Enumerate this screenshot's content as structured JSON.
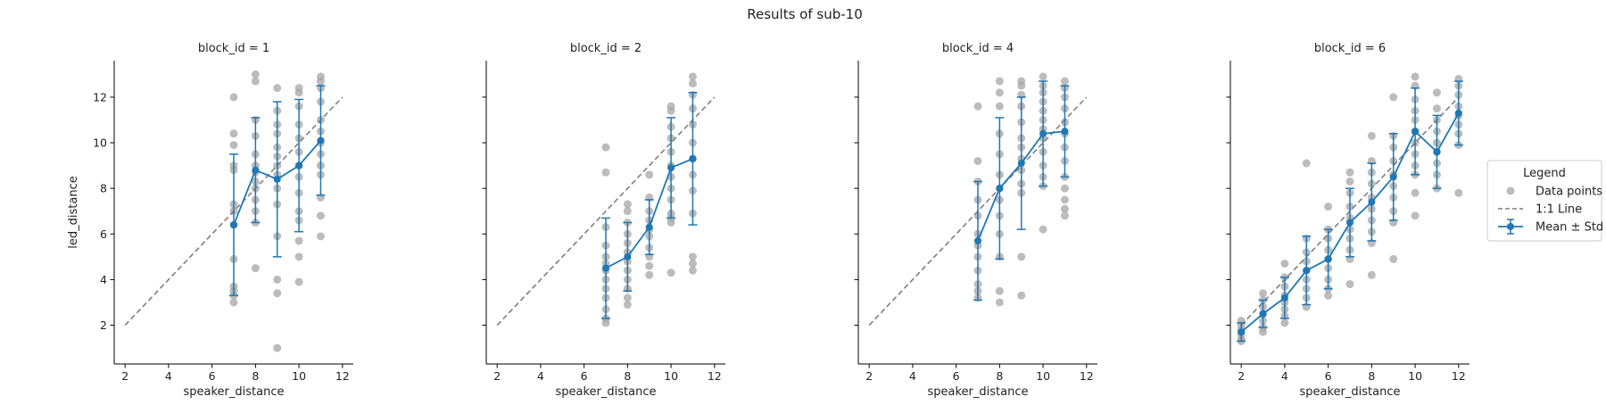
{
  "figure": {
    "title": "Results of sub-10"
  },
  "legend": {
    "title": "Legend",
    "entries": [
      {
        "label": "Data points",
        "kind": "dot"
      },
      {
        "label": "1:1 Line",
        "kind": "dashed"
      },
      {
        "label": "Mean ± Std",
        "kind": "errorbar"
      }
    ]
  },
  "colors": {
    "mean": "#1f77b4",
    "points": "#a6a6a6",
    "identity": "#7f7f7f",
    "axis": "#000000"
  },
  "chart_data": [
    {
      "type": "line",
      "title": "block_id = 1",
      "xlabel": "speaker_distance",
      "ylabel": "led_distance",
      "xlim": [
        1.5,
        12.5
      ],
      "ylim": [
        0.3,
        13.6
      ],
      "xticks": [
        2,
        4,
        6,
        8,
        10,
        12
      ],
      "yticks": [
        2,
        4,
        6,
        8,
        10,
        12
      ],
      "identity_line": [
        2,
        12
      ],
      "mean": {
        "x": [
          7,
          8,
          9,
          10,
          11
        ],
        "y": [
          6.4,
          8.8,
          8.4,
          9.0,
          10.1
        ],
        "std": [
          3.1,
          2.3,
          3.4,
          2.9,
          2.4
        ]
      },
      "points": [
        [
          7,
          12.0
        ],
        [
          7,
          10.4
        ],
        [
          7,
          9.9
        ],
        [
          7,
          9.0
        ],
        [
          7,
          8.8
        ],
        [
          7,
          7.3
        ],
        [
          7,
          7.0
        ],
        [
          7,
          6.4
        ],
        [
          7,
          4.9
        ],
        [
          7,
          3.7
        ],
        [
          7,
          3.5
        ],
        [
          7,
          3.3
        ],
        [
          7,
          3.0
        ],
        [
          8,
          13.0
        ],
        [
          8,
          12.7
        ],
        [
          8,
          11.0
        ],
        [
          8,
          10.3
        ],
        [
          8,
          9.5
        ],
        [
          8,
          9.0
        ],
        [
          8,
          8.7
        ],
        [
          8,
          8.3
        ],
        [
          8,
          8.0
        ],
        [
          8,
          7.5
        ],
        [
          8,
          7.0
        ],
        [
          8,
          6.5
        ],
        [
          8,
          4.5
        ],
        [
          9,
          12.4
        ],
        [
          9,
          11.4
        ],
        [
          9,
          10.8
        ],
        [
          9,
          10.4
        ],
        [
          9,
          9.8
        ],
        [
          9,
          9.4
        ],
        [
          9,
          9.0
        ],
        [
          9,
          8.6
        ],
        [
          9,
          8.0
        ],
        [
          9,
          7.3
        ],
        [
          9,
          5.9
        ],
        [
          9,
          4.0
        ],
        [
          9,
          3.4
        ],
        [
          9,
          1.0
        ],
        [
          10,
          12.4
        ],
        [
          10,
          12.2
        ],
        [
          10,
          11.6
        ],
        [
          10,
          10.8
        ],
        [
          10,
          10.2
        ],
        [
          10,
          9.6
        ],
        [
          10,
          9.0
        ],
        [
          10,
          8.5
        ],
        [
          10,
          7.8
        ],
        [
          10,
          7.0
        ],
        [
          10,
          6.6
        ],
        [
          10,
          5.7
        ],
        [
          10,
          5.0
        ],
        [
          10,
          3.9
        ],
        [
          11,
          12.9
        ],
        [
          11,
          12.7
        ],
        [
          11,
          12.4
        ],
        [
          11,
          11.8
        ],
        [
          11,
          11.0
        ],
        [
          11,
          10.5
        ],
        [
          11,
          10.0
        ],
        [
          11,
          9.5
        ],
        [
          11,
          9.0
        ],
        [
          11,
          8.6
        ],
        [
          11,
          7.6
        ],
        [
          11,
          6.8
        ],
        [
          11,
          5.9
        ]
      ]
    },
    {
      "type": "line",
      "title": "block_id = 2",
      "xlabel": "speaker_distance",
      "ylabel": "",
      "xlim": [
        1.5,
        12.5
      ],
      "ylim": [
        0.3,
        13.6
      ],
      "xticks": [
        2,
        4,
        6,
        8,
        10,
        12
      ],
      "yticks": [
        2,
        4,
        6,
        8,
        10,
        12
      ],
      "identity_line": [
        2,
        12
      ],
      "mean": {
        "x": [
          7,
          8,
          9,
          10,
          11
        ],
        "y": [
          4.5,
          5.0,
          6.3,
          8.9,
          9.3
        ],
        "std": [
          2.2,
          1.5,
          1.2,
          2.2,
          2.9
        ]
      },
      "points": [
        [
          7,
          9.8
        ],
        [
          7,
          8.7
        ],
        [
          7,
          6.3
        ],
        [
          7,
          5.5
        ],
        [
          7,
          5.0
        ],
        [
          7,
          4.7
        ],
        [
          7,
          4.4
        ],
        [
          7,
          4.0
        ],
        [
          7,
          3.6
        ],
        [
          7,
          3.2
        ],
        [
          7,
          2.7
        ],
        [
          7,
          2.3
        ],
        [
          7,
          2.1
        ],
        [
          8,
          7.3
        ],
        [
          8,
          7.0
        ],
        [
          8,
          6.5
        ],
        [
          8,
          6.0
        ],
        [
          8,
          5.6
        ],
        [
          8,
          5.2
        ],
        [
          8,
          4.8
        ],
        [
          8,
          4.4
        ],
        [
          8,
          4.0
        ],
        [
          8,
          3.6
        ],
        [
          8,
          3.2
        ],
        [
          8,
          2.9
        ],
        [
          9,
          8.6
        ],
        [
          9,
          7.6
        ],
        [
          9,
          7.0
        ],
        [
          9,
          6.6
        ],
        [
          9,
          6.2
        ],
        [
          9,
          5.9
        ],
        [
          9,
          5.4
        ],
        [
          9,
          5.0
        ],
        [
          9,
          4.6
        ],
        [
          9,
          4.2
        ],
        [
          10,
          11.6
        ],
        [
          10,
          11.4
        ],
        [
          10,
          10.7
        ],
        [
          10,
          10.2
        ],
        [
          10,
          9.6
        ],
        [
          10,
          9.0
        ],
        [
          10,
          8.5
        ],
        [
          10,
          8.0
        ],
        [
          10,
          7.5
        ],
        [
          10,
          6.9
        ],
        [
          10,
          6.7
        ],
        [
          10,
          6.5
        ],
        [
          10,
          4.3
        ],
        [
          11,
          12.9
        ],
        [
          11,
          12.6
        ],
        [
          11,
          12.1
        ],
        [
          11,
          11.5
        ],
        [
          11,
          10.8
        ],
        [
          11,
          10.0
        ],
        [
          11,
          9.3
        ],
        [
          11,
          8.6
        ],
        [
          11,
          7.9
        ],
        [
          11,
          6.9
        ],
        [
          11,
          5.0
        ],
        [
          11,
          4.7
        ],
        [
          11,
          4.4
        ]
      ]
    },
    {
      "type": "line",
      "title": "block_id = 4",
      "xlabel": "speaker_distance",
      "ylabel": "",
      "xlim": [
        1.5,
        12.5
      ],
      "ylim": [
        0.3,
        13.6
      ],
      "xticks": [
        2,
        4,
        6,
        8,
        10,
        12
      ],
      "yticks": [
        2,
        4,
        6,
        8,
        10,
        12
      ],
      "identity_line": [
        2,
        12
      ],
      "mean": {
        "x": [
          7,
          8,
          9,
          10,
          11
        ],
        "y": [
          5.7,
          8.0,
          9.1,
          10.4,
          10.5
        ],
        "std": [
          2.6,
          3.1,
          2.9,
          2.3,
          2.0
        ]
      },
      "points": [
        [
          7,
          11.6
        ],
        [
          7,
          9.2
        ],
        [
          7,
          8.3
        ],
        [
          7,
          7.5
        ],
        [
          7,
          6.8
        ],
        [
          7,
          6.0
        ],
        [
          7,
          5.5
        ],
        [
          7,
          5.0
        ],
        [
          7,
          4.4
        ],
        [
          7,
          3.8
        ],
        [
          7,
          3.5
        ],
        [
          7,
          3.2
        ],
        [
          8,
          12.7
        ],
        [
          8,
          12.2
        ],
        [
          8,
          11.6
        ],
        [
          8,
          10.4
        ],
        [
          8,
          9.5
        ],
        [
          8,
          8.6
        ],
        [
          8,
          8.0
        ],
        [
          8,
          7.5
        ],
        [
          8,
          6.8
        ],
        [
          8,
          6.0
        ],
        [
          8,
          5.0
        ],
        [
          8,
          3.5
        ],
        [
          8,
          3.0
        ],
        [
          9,
          12.7
        ],
        [
          9,
          12.5
        ],
        [
          9,
          12.1
        ],
        [
          9,
          11.6
        ],
        [
          9,
          10.9
        ],
        [
          9,
          10.2
        ],
        [
          9,
          9.8
        ],
        [
          9,
          9.3
        ],
        [
          9,
          8.8
        ],
        [
          9,
          8.2
        ],
        [
          9,
          7.8
        ],
        [
          9,
          5.0
        ],
        [
          9,
          3.3
        ],
        [
          10,
          12.9
        ],
        [
          10,
          12.5
        ],
        [
          10,
          12.2
        ],
        [
          10,
          11.8
        ],
        [
          10,
          11.4
        ],
        [
          10,
          11.0
        ],
        [
          10,
          10.6
        ],
        [
          10,
          10.2
        ],
        [
          10,
          9.6
        ],
        [
          10,
          9.0
        ],
        [
          10,
          8.5
        ],
        [
          10,
          8.1
        ],
        [
          10,
          6.2
        ],
        [
          11,
          12.7
        ],
        [
          11,
          12.4
        ],
        [
          11,
          12.0
        ],
        [
          11,
          11.5
        ],
        [
          11,
          10.9
        ],
        [
          11,
          10.4
        ],
        [
          11,
          9.8
        ],
        [
          11,
          9.2
        ],
        [
          11,
          8.5
        ],
        [
          11,
          8.0
        ],
        [
          11,
          7.5
        ],
        [
          11,
          7.1
        ],
        [
          11,
          6.8
        ]
      ]
    },
    {
      "type": "line",
      "title": "block_id = 6",
      "xlabel": "speaker_distance",
      "ylabel": "",
      "xlim": [
        1.5,
        12.5
      ],
      "ylim": [
        0.3,
        13.6
      ],
      "xticks": [
        2,
        4,
        6,
        8,
        10,
        12
      ],
      "yticks": [
        2,
        4,
        6,
        8,
        10,
        12
      ],
      "identity_line": [
        2,
        12
      ],
      "mean": {
        "x": [
          2,
          3,
          4,
          5,
          6,
          7,
          8,
          9,
          10,
          11,
          12
        ],
        "y": [
          1.7,
          2.5,
          3.2,
          4.4,
          4.9,
          6.5,
          7.4,
          8.5,
          10.5,
          9.6,
          11.3
        ],
        "std": [
          0.4,
          0.6,
          0.9,
          1.5,
          1.3,
          1.5,
          1.7,
          1.9,
          1.9,
          1.6,
          1.4
        ]
      },
      "points": [
        [
          2,
          2.2
        ],
        [
          2,
          2.0
        ],
        [
          2,
          1.8
        ],
        [
          2,
          1.6
        ],
        [
          2,
          1.4
        ],
        [
          2,
          1.3
        ],
        [
          3,
          3.4
        ],
        [
          3,
          3.1
        ],
        [
          3,
          2.8
        ],
        [
          3,
          2.5
        ],
        [
          3,
          2.2
        ],
        [
          3,
          1.9
        ],
        [
          3,
          1.7
        ],
        [
          4,
          4.7
        ],
        [
          4,
          4.1
        ],
        [
          4,
          3.7
        ],
        [
          4,
          3.3
        ],
        [
          4,
          3.0
        ],
        [
          4,
          2.7
        ],
        [
          4,
          2.4
        ],
        [
          4,
          2.1
        ],
        [
          5,
          9.1
        ],
        [
          5,
          5.8
        ],
        [
          5,
          5.2
        ],
        [
          5,
          4.8
        ],
        [
          5,
          4.4
        ],
        [
          5,
          4.0
        ],
        [
          5,
          3.6
        ],
        [
          5,
          3.2
        ],
        [
          5,
          2.8
        ],
        [
          6,
          7.2
        ],
        [
          6,
          6.2
        ],
        [
          6,
          5.8
        ],
        [
          6,
          5.3
        ],
        [
          6,
          4.9
        ],
        [
          6,
          4.5
        ],
        [
          6,
          4.0
        ],
        [
          6,
          3.6
        ],
        [
          6,
          3.3
        ],
        [
          7,
          8.7
        ],
        [
          7,
          8.3
        ],
        [
          7,
          7.8
        ],
        [
          7,
          7.2
        ],
        [
          7,
          6.7
        ],
        [
          7,
          6.2
        ],
        [
          7,
          5.8
        ],
        [
          7,
          5.3
        ],
        [
          7,
          4.9
        ],
        [
          7,
          3.8
        ],
        [
          8,
          10.3
        ],
        [
          8,
          9.2
        ],
        [
          8,
          8.7
        ],
        [
          8,
          8.2
        ],
        [
          8,
          7.6
        ],
        [
          8,
          7.1
        ],
        [
          8,
          6.6
        ],
        [
          8,
          6.1
        ],
        [
          8,
          5.6
        ],
        [
          8,
          4.2
        ],
        [
          9,
          12.0
        ],
        [
          9,
          10.3
        ],
        [
          9,
          9.8
        ],
        [
          9,
          9.2
        ],
        [
          9,
          8.6
        ],
        [
          9,
          8.1
        ],
        [
          9,
          7.6
        ],
        [
          9,
          7.0
        ],
        [
          9,
          6.5
        ],
        [
          9,
          4.9
        ],
        [
          10,
          12.9
        ],
        [
          10,
          12.5
        ],
        [
          10,
          11.9
        ],
        [
          10,
          11.4
        ],
        [
          10,
          11.0
        ],
        [
          10,
          10.5
        ],
        [
          10,
          10.0
        ],
        [
          10,
          9.5
        ],
        [
          10,
          9.0
        ],
        [
          10,
          8.6
        ],
        [
          10,
          7.8
        ],
        [
          10,
          6.8
        ],
        [
          11,
          12.2
        ],
        [
          11,
          11.5
        ],
        [
          11,
          11.0
        ],
        [
          11,
          10.5
        ],
        [
          11,
          10.0
        ],
        [
          11,
          9.6
        ],
        [
          11,
          9.1
        ],
        [
          11,
          8.6
        ],
        [
          11,
          8.0
        ],
        [
          12,
          12.8
        ],
        [
          12,
          12.5
        ],
        [
          12,
          12.1
        ],
        [
          12,
          11.6
        ],
        [
          12,
          11.2
        ],
        [
          12,
          10.8
        ],
        [
          12,
          10.4
        ],
        [
          12,
          9.9
        ],
        [
          12,
          7.8
        ]
      ]
    }
  ]
}
